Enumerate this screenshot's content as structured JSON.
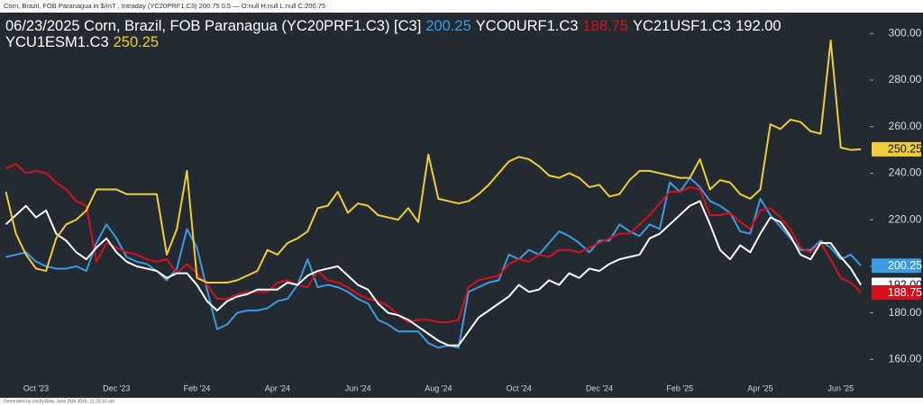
{
  "header": "Corn, Brazil, FOB Paranagua in $/mT , Intraday (YC20PRF1.C3) 200.75 0.5 — O:null H:null L:null C:200.75",
  "footer": "Generated by cmdtyView, June 25th 2025, 11:33:10 am",
  "chart_data": {
    "type": "line",
    "title": "06/23/2025 Corn, Brazil, FOB Paranagua (YC20PRF1.C3) [C3]",
    "categories": [
      null,
      null,
      null,
      "Oct '23",
      null,
      null,
      null,
      null,
      null,
      null,
      null,
      "Dec '23",
      null,
      null,
      null,
      null,
      null,
      null,
      null,
      "Feb '24",
      null,
      null,
      null,
      null,
      null,
      null,
      null,
      "Apr '24",
      null,
      null,
      null,
      null,
      null,
      null,
      null,
      "Jun '24",
      null,
      null,
      null,
      null,
      null,
      null,
      null,
      "Aug '24",
      null,
      null,
      null,
      null,
      null,
      null,
      null,
      "Oct '24",
      null,
      null,
      null,
      null,
      null,
      null,
      null,
      "Dec '24",
      null,
      null,
      null,
      null,
      null,
      null,
      null,
      "Feb '25",
      null,
      null,
      null,
      null,
      null,
      null,
      null,
      "Apr '25",
      null,
      null,
      null,
      null,
      null,
      null,
      null,
      "Jun '25",
      null,
      null
    ],
    "series": [
      {
        "color": "#3d9be3",
        "last_label": "200.25",
        "values": [
          204,
          205,
          206,
          202,
          200,
          199,
          199,
          200,
          198,
          210,
          218,
          212,
          204,
          202,
          201,
          198,
          194,
          199,
          216,
          208,
          190,
          173,
          175,
          180,
          181,
          181,
          182,
          185,
          186,
          192,
          203,
          191,
          192,
          191,
          189,
          186,
          184,
          177,
          175,
          172,
          172,
          172,
          167,
          165,
          166,
          165,
          189,
          191,
          193,
          194,
          205,
          203,
          207,
          205,
          210,
          215,
          213,
          210,
          206,
          211,
          211,
          218,
          215,
          213,
          218,
          216,
          236,
          232,
          238,
          234,
          228,
          226,
          223,
          215,
          214,
          229,
          222,
          217,
          212,
          207,
          207,
          211,
          208,
          203,
          205,
          200.25
        ]
      },
      {
        "name": "YCO0URF1.C3",
        "color": "#d8101e",
        "last_label": "188.75",
        "values": [
          242,
          244,
          240,
          241,
          240,
          236,
          233,
          228,
          226,
          202,
          210,
          208,
          206,
          205,
          203,
          202,
          203,
          197,
          201,
          197,
          192,
          186,
          186,
          188,
          189,
          189,
          189,
          193,
          194,
          192,
          191,
          198,
          194,
          193,
          191,
          188,
          186,
          185,
          183,
          179,
          176,
          177,
          177,
          176,
          176,
          177,
          191,
          194,
          195,
          196,
          201,
          203,
          202,
          205,
          204,
          207,
          207,
          206,
          208,
          210,
          212,
          214,
          214,
          218,
          222,
          227,
          232,
          232,
          234,
          233,
          222,
          222,
          223,
          219,
          216,
          224,
          225,
          221,
          216,
          208,
          206,
          210,
          203,
          195,
          193,
          188.75
        ]
      },
      {
        "name": "YC21USF1.C3",
        "color": "#ffffff",
        "last_label": "192.00",
        "values": [
          218,
          222,
          226,
          221,
          224,
          214,
          211,
          206,
          203,
          208,
          212,
          206,
          202,
          200,
          199,
          198,
          195,
          197,
          197,
          192,
          185,
          181,
          185,
          187,
          188,
          190,
          190,
          190,
          193,
          192,
          196,
          198,
          199,
          200,
          196,
          192,
          190,
          184,
          180,
          179,
          177,
          174,
          171,
          168,
          166,
          166,
          172,
          178,
          181,
          184,
          187,
          192,
          189,
          190,
          194,
          192,
          197,
          195,
          199,
          198,
          201,
          203,
          204,
          205,
          212,
          214,
          218,
          222,
          226,
          228,
          218,
          207,
          203,
          209,
          206,
          214,
          221,
          219,
          213,
          205,
          203,
          210,
          210,
          204,
          199,
          192
        ]
      },
      {
        "name": "YCU1ESM1.C3",
        "color": "#f0cd3a",
        "last_label": "250.25",
        "values": [
          232,
          214,
          205,
          199,
          198,
          212,
          218,
          220,
          224,
          233,
          233,
          233,
          231,
          231,
          231,
          231,
          205,
          216,
          241,
          195,
          193,
          193,
          193,
          194,
          196,
          198,
          207,
          205,
          210,
          212,
          215,
          225,
          226,
          232,
          223,
          227,
          226,
          222,
          221,
          220,
          225,
          219,
          248,
          229,
          228,
          227,
          228,
          231,
          235,
          240,
          245,
          247,
          246,
          243,
          239,
          238,
          240,
          238,
          234,
          235,
          230,
          231,
          237,
          241,
          241,
          240,
          239,
          238,
          238,
          246,
          233,
          237,
          236,
          231,
          229,
          233,
          261,
          259,
          263,
          262,
          258,
          257,
          297,
          251,
          250,
          250.25
        ]
      }
    ],
    "ylim": [
      152,
      309
    ],
    "yticks": [
      {
        "value": 160,
        "label": "160.00"
      },
      {
        "value": 180,
        "label": "180.00"
      },
      {
        "value": 200,
        "label": "200.00"
      },
      {
        "value": 220,
        "label": "220.00"
      },
      {
        "value": 240,
        "label": "240.00"
      },
      {
        "value": 260,
        "label": "260.00"
      },
      {
        "value": 280,
        "label": "280.00"
      },
      {
        "value": 300,
        "label": "300.00"
      }
    ],
    "grid": false,
    "axis_side": "right"
  }
}
